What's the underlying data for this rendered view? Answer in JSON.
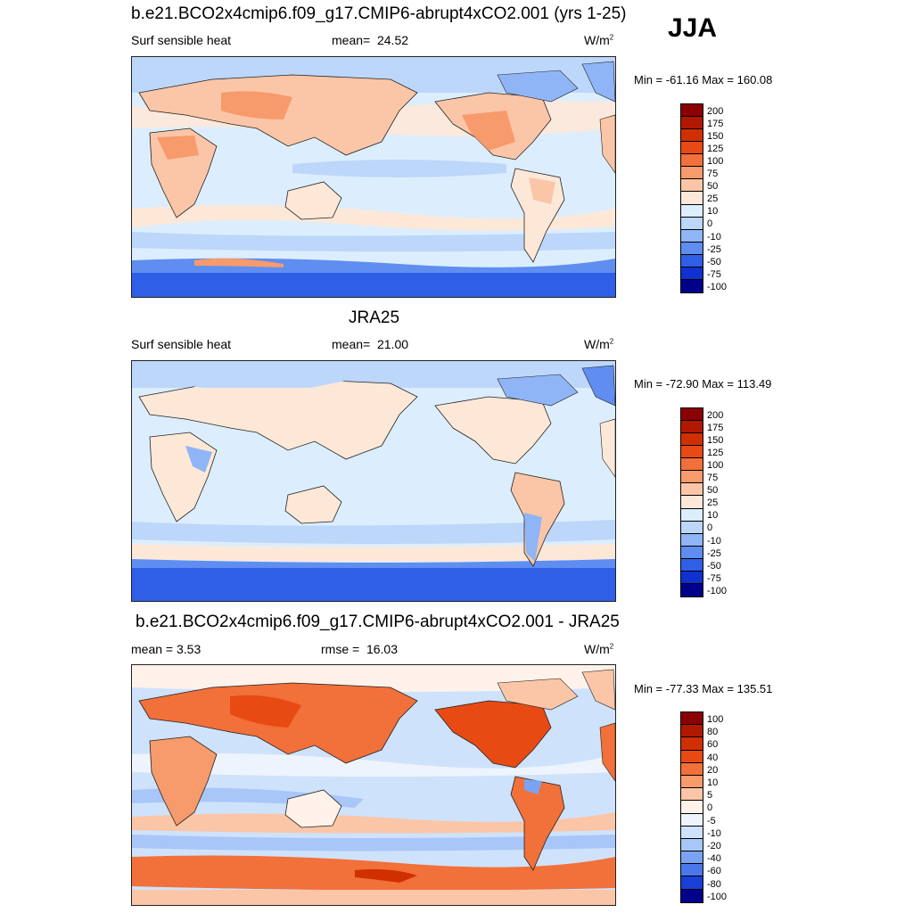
{
  "season": "JJA",
  "panels": [
    {
      "title": "b.e21.BCO2x4cmip6.f09_g17.CMIP6-abrupt4xCO2.001 (yrs 1-25)",
      "left_text": "Surf sensible heat",
      "mid_label": "mean=",
      "mid_value": "24.52",
      "units": "W/m",
      "units_sup": "2",
      "minmax": "Min = -61.16 Max = 160.08",
      "colorbar": {
        "labels": [
          "200",
          "175",
          "150",
          "125",
          "100",
          "75",
          "50",
          "25",
          "10",
          "0",
          "-10",
          "-25",
          "-50",
          "-75",
          "-100"
        ],
        "colors": [
          "#8b0000",
          "#b01800",
          "#d03000",
          "#e84a14",
          "#f2703a",
          "#f79a6c",
          "#fbc6a7",
          "#fde8d8",
          "#dceefe",
          "#bdd7fb",
          "#8fb5f6",
          "#5f8ef0",
          "#2f5fe6",
          "#1030cf",
          "#00008b"
        ]
      }
    },
    {
      "title": "JRA25",
      "left_text": "Surf sensible heat",
      "mid_label": "mean=",
      "mid_value": "21.00",
      "units": "W/m",
      "units_sup": "2",
      "minmax": "Min = -72.90 Max = 113.49",
      "colorbar": {
        "labels": [
          "200",
          "175",
          "150",
          "125",
          "100",
          "75",
          "50",
          "25",
          "10",
          "0",
          "-10",
          "-25",
          "-50",
          "-75",
          "-100"
        ],
        "colors": [
          "#8b0000",
          "#b01800",
          "#d03000",
          "#e84a14",
          "#f2703a",
          "#f79a6c",
          "#fbc6a7",
          "#fde8d8",
          "#dceefe",
          "#bdd7fb",
          "#8fb5f6",
          "#5f8ef0",
          "#2f5fe6",
          "#1030cf",
          "#00008b"
        ]
      }
    },
    {
      "title": "b.e21.BCO2x4cmip6.f09_g17.CMIP6-abrupt4xCO2.001 - JRA25",
      "left_text": "mean =   3.53",
      "mid_label": "rmse =",
      "mid_value": "16.03",
      "units": "W/m",
      "units_sup": "2",
      "minmax": "Min = -77.33 Max = 135.51",
      "colorbar": {
        "labels": [
          "100",
          "80",
          "60",
          "40",
          "20",
          "10",
          "5",
          "0",
          "-5",
          "-10",
          "-20",
          "-40",
          "-60",
          "-80",
          "-100"
        ],
        "colors": [
          "#8b0000",
          "#b01800",
          "#d03000",
          "#e84a14",
          "#f2703a",
          "#f79a6c",
          "#fbc6a7",
          "#fef2ea",
          "#eef4fd",
          "#cfe2fc",
          "#a8c7f8",
          "#7aa3f3",
          "#4a78ea",
          "#1a3fd6",
          "#00008b"
        ]
      }
    }
  ],
  "fill_colors": {
    "ocean_mid": "#dceefe",
    "ocean_pale": "#bdd7fb",
    "cool": "#8fb5f6",
    "cold": "#5f8ef0",
    "cold_deep": "#2f5fe6",
    "warm_pale": "#fde8d8",
    "warm": "#fbc6a7",
    "hot": "#f79a6c",
    "hotter": "#f2703a",
    "coast": "#222222"
  }
}
